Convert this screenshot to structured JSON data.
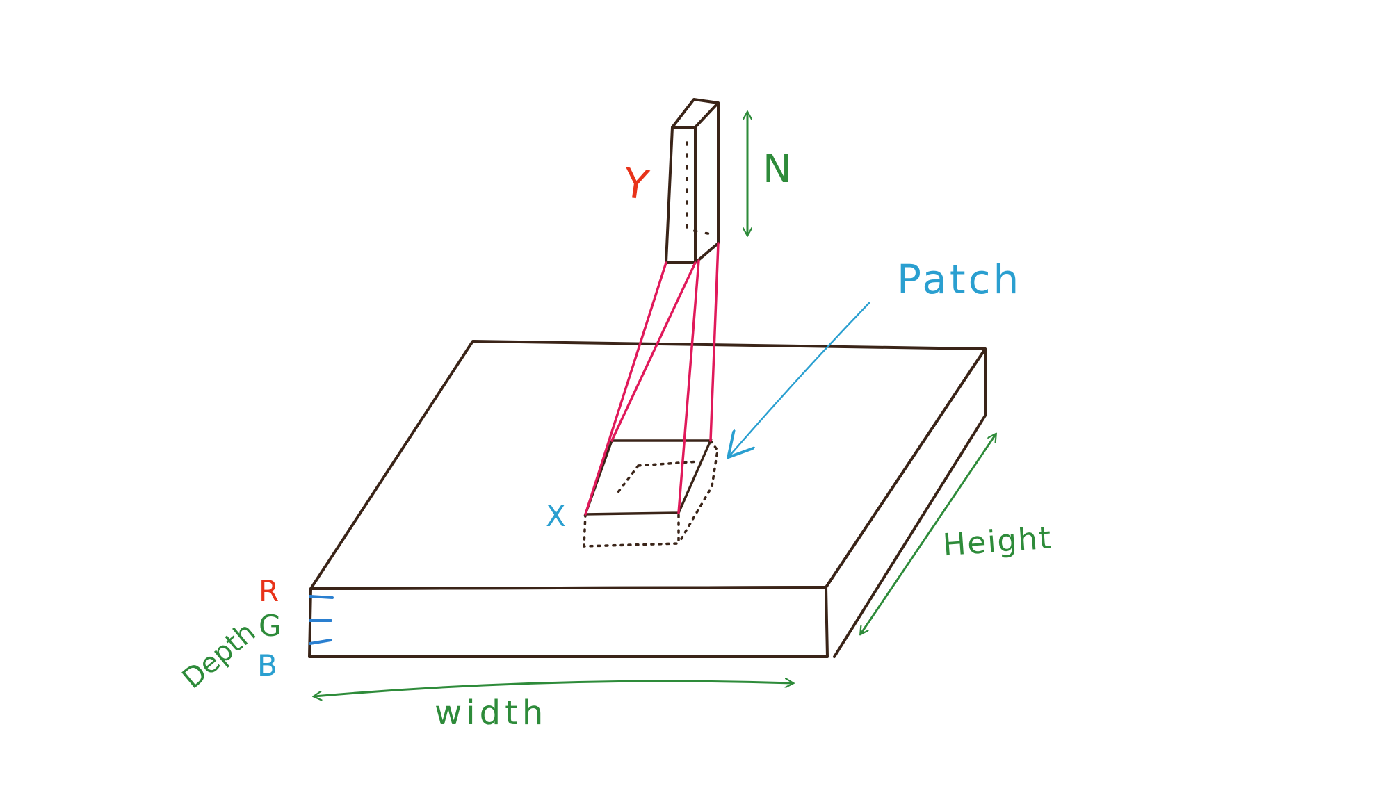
{
  "labels": {
    "y": "Y",
    "n": "N",
    "patch": "Patch",
    "x": "X",
    "height": "Height",
    "width": "width",
    "depth": "Depth",
    "r": "R",
    "g": "G",
    "b": "B"
  },
  "colors": {
    "outline": "#3a2418",
    "connector": "#e0195a",
    "dimension": "#2e8b3a",
    "patch_label": "#2a9fd0",
    "y_label": "#e8331a",
    "r_label": "#e8331a",
    "g_label": "#2e8b3a",
    "b_label": "#2a9fd0",
    "channel_ticks": "#2a7fd0"
  }
}
